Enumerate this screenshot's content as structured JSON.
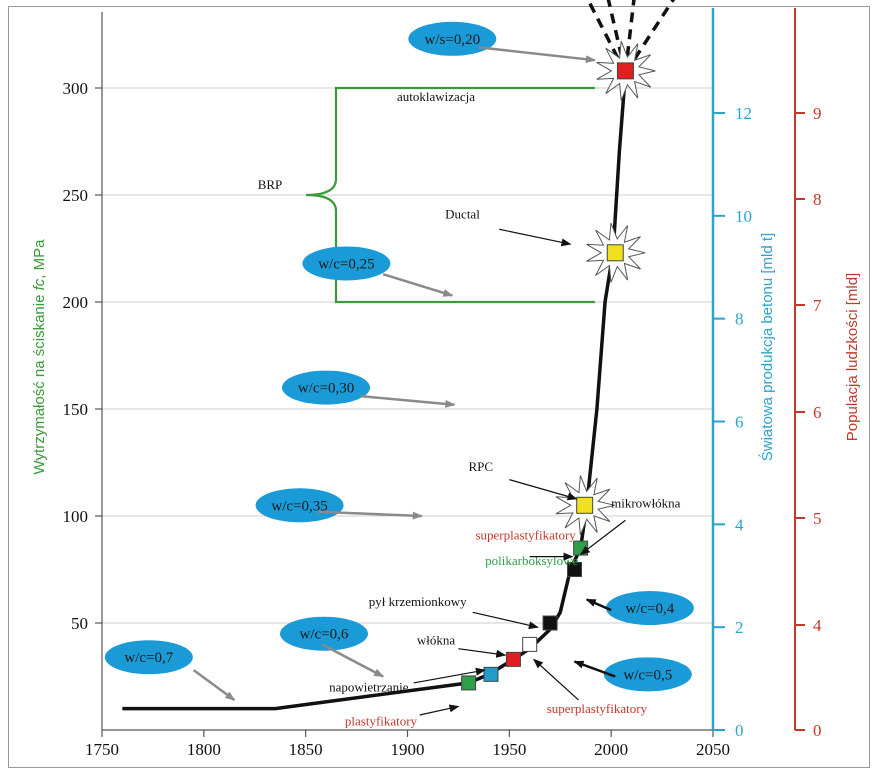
{
  "chart_data": {
    "type": "line",
    "title": "",
    "xlabel": "",
    "x_ticks": [
      "1750",
      "1800",
      "1850",
      "1900",
      "1950",
      "2000",
      "2050"
    ],
    "xlim": [
      1750,
      2050
    ],
    "ylim": [
      0,
      340
    ],
    "y_left": {
      "label": "Wytrzymałość na ściskanie fc, MPa",
      "label_prefix": "Wytrzymałość na ściskanie ",
      "label_var": "fc",
      "label_suffix": ", MPa",
      "ticks": [
        "50",
        "100",
        "150",
        "200",
        "250",
        "300"
      ],
      "color": "#3a9a3a"
    },
    "y_right1": {
      "label": "Światowa produkcja betonu [mld t]",
      "ticks": [
        "0",
        "2",
        "4",
        "6",
        "8",
        "10",
        "12"
      ],
      "range": [
        0,
        14
      ],
      "color": "#2aa3cf"
    },
    "y_right2": {
      "label": "Populacja ludzkości [mld]",
      "ticks": [
        "0",
        "4",
        "5",
        "6",
        "7",
        "8",
        "9"
      ],
      "color": "#c0392b"
    },
    "grid_y": true,
    "series": [
      {
        "x": [
          1760,
          1835,
          1930,
          1940,
          1952,
          1960,
          1970,
          1975,
          1980,
          1985,
          1988,
          1993,
          1997,
          2001,
          2004,
          2007
        ],
        "y": [
          10,
          10,
          22,
          26,
          33,
          38,
          47,
          55,
          75,
          85,
          105,
          150,
          200,
          224,
          270,
          307
        ]
      }
    ],
    "dashed_projections": [
      {
        "x": [
          2007,
          1985
        ],
        "y": [
          307,
          348
        ]
      },
      {
        "x": [
          2007,
          1997
        ],
        "y": [
          307,
          348
        ]
      },
      {
        "x": [
          2007,
          2012
        ],
        "y": [
          307,
          348
        ]
      },
      {
        "x": [
          2007,
          2033
        ],
        "y": [
          307,
          345
        ]
      }
    ],
    "markers": [
      {
        "x": 1930,
        "y": 22,
        "color": "#2e9e4a"
      },
      {
        "x": 1941,
        "y": 26,
        "color": "#1f9dc8"
      },
      {
        "x": 1952,
        "y": 33,
        "color": "#e02020"
      },
      {
        "x": 1960,
        "y": 40,
        "color": "#ffffff"
      },
      {
        "x": 1970,
        "y": 50,
        "color": "#111111"
      },
      {
        "x": 1982,
        "y": 75,
        "color": "#111111"
      },
      {
        "x": 1985,
        "y": 85,
        "color": "#2e9e4a"
      },
      {
        "x": 1987,
        "y": 105,
        "color": "#f0e020",
        "burst": true
      },
      {
        "x": 2002,
        "y": 223,
        "color": "#f0e020",
        "burst": true
      },
      {
        "x": 2007,
        "y": 308,
        "color": "#e02020",
        "burst": true
      }
    ],
    "brp": {
      "label": "BRP",
      "y_top": 300,
      "y_bottom": 200,
      "x_tip": 1852,
      "x_right": 1992
    },
    "bubbles": [
      {
        "text": "w/c=0,7",
        "x": 1773,
        "y": 34,
        "ax": [
          1795,
          28,
          1815,
          14
        ]
      },
      {
        "text": "w/c=0,6",
        "x": 1859,
        "y": 45,
        "ax": [
          1858,
          40,
          1888,
          25
        ]
      },
      {
        "text": "w/c=0,5",
        "x": 2018,
        "y": 26,
        "ax": [
          2002,
          25,
          1982,
          32
        ]
      },
      {
        "text": "w/c=0,4",
        "x": 2019,
        "y": 57,
        "ax": [
          2000,
          56,
          1988,
          61
        ]
      },
      {
        "text": "w/c=0,35",
        "x": 1847,
        "y": 105,
        "ax": [
          1856,
          102,
          1907,
          100
        ]
      },
      {
        "text": "w/c=0,30",
        "x": 1860,
        "y": 160,
        "ax": [
          1877,
          156,
          1923,
          152
        ]
      },
      {
        "text": "w/c=0,25",
        "x": 1870,
        "y": 218,
        "ax": [
          1888,
          213,
          1922,
          203
        ]
      },
      {
        "text": "w/s=0,20",
        "x": 1922,
        "y": 323,
        "ax": [
          1935,
          319,
          1992,
          313
        ]
      }
    ],
    "annotations": [
      {
        "text": "autoklawizacja",
        "x": 1914,
        "y": 294,
        "color": "#111111",
        "anchor": "middle"
      },
      {
        "text": "Ductal",
        "x": 1927,
        "y": 239,
        "color": "#111111",
        "anchor": "middle",
        "arrow": [
          1945,
          234,
          1980,
          227
        ]
      },
      {
        "text": "RPC",
        "x": 1936,
        "y": 121,
        "color": "#111111",
        "anchor": "middle",
        "arrow": [
          1950,
          117,
          1983,
          108
        ]
      },
      {
        "text": "mikrowłókna",
        "x": 2017,
        "y": 104,
        "color": "#111111",
        "anchor": "middle",
        "arrow": [
          2007,
          98,
          1985,
          82
        ]
      },
      {
        "text": "superplastyfikatory",
        "x": 1958,
        "y": 89,
        "color": "#c0392b",
        "anchor": "middle"
      },
      {
        "text": "polikarboksylowe",
        "x": 1961,
        "y": 77,
        "color": "#2e9e4a",
        "anchor": "middle",
        "arrow": [
          1960,
          81,
          1981,
          81
        ]
      },
      {
        "text": "pył krzemionkowy",
        "x": 1905,
        "y": 58,
        "color": "#111111",
        "anchor": "middle",
        "arrow": [
          1932,
          55,
          1964,
          48
        ]
      },
      {
        "text": "włókna",
        "x": 1914,
        "y": 40,
        "color": "#111111",
        "anchor": "middle",
        "arrow": [
          1925,
          38,
          1948,
          35
        ]
      },
      {
        "text": "napowietrzanie",
        "x": 1881,
        "y": 18,
        "color": "#111111",
        "anchor": "middle",
        "arrow": [
          1903,
          22,
          1938,
          28
        ]
      },
      {
        "text": "plastyfikatory",
        "x": 1887,
        "y": 2,
        "color": "#c0392b",
        "anchor": "middle",
        "arrow": [
          1906,
          7,
          1925,
          11
        ]
      },
      {
        "text": "superplastyfikatory",
        "x": 1993,
        "y": 8,
        "color": "#c0392b",
        "anchor": "middle",
        "arrow": [
          1984,
          14,
          1962,
          33
        ]
      }
    ]
  }
}
